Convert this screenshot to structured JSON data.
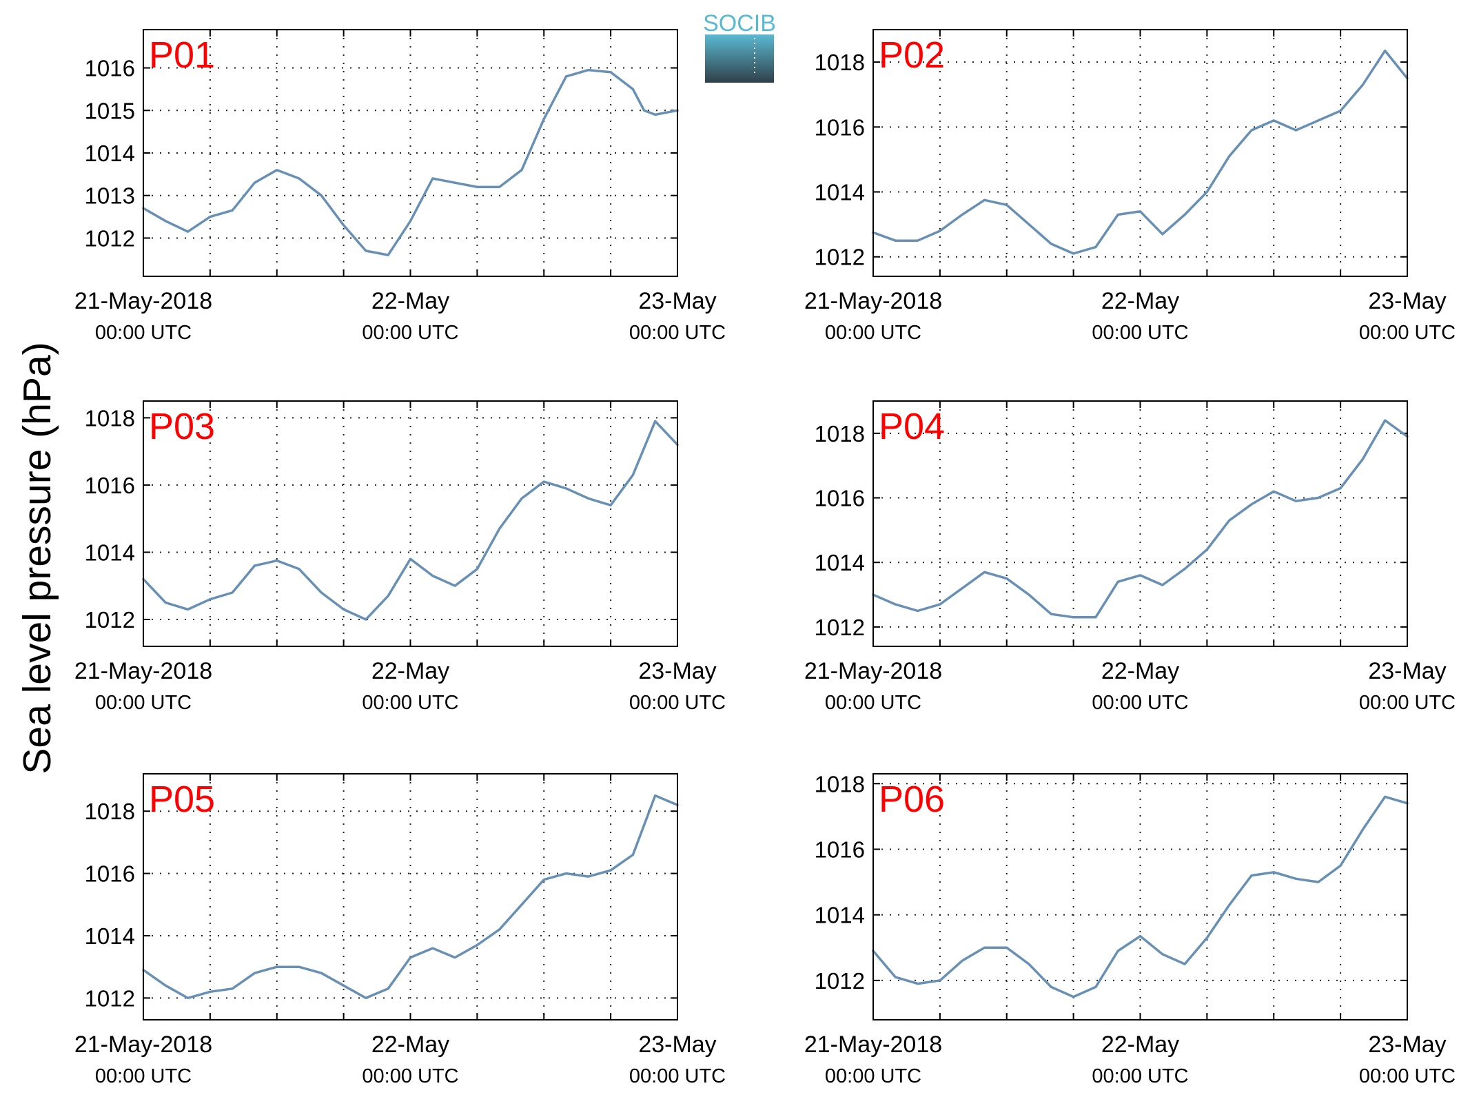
{
  "figure": {
    "ylabel": "Sea level pressure (hPa)",
    "logo_text": "SOCIB",
    "colors": {
      "line": "#6890b4",
      "panel_label": "#ff0000",
      "logo_top": "#5ab9d2",
      "logo_bottom": "#2f4049"
    }
  },
  "chart_data": [
    {
      "type": "line",
      "panel_label": "P01",
      "x_range": [
        "2018-05-21T00:00",
        "2018-05-23T00:00"
      ],
      "x_ticks": [
        {
          "label": "21-May-2018",
          "sub": "00:00 UTC"
        },
        {
          "label": "22-May",
          "sub": "00:00 UTC"
        },
        {
          "label": "23-May",
          "sub": "00:00 UTC"
        }
      ],
      "ylim": [
        1011.1,
        1016.9
      ],
      "yticks": [
        1012,
        1013,
        1014,
        1015,
        1016
      ],
      "grid": true,
      "x_hours": [
        0,
        2,
        4,
        6,
        8,
        10,
        12,
        14,
        16,
        18,
        20,
        22,
        24,
        26,
        28,
        30,
        32,
        34,
        36,
        38,
        40,
        42,
        44,
        45,
        46,
        48
      ],
      "values": [
        1012.7,
        1012.4,
        1012.15,
        1012.5,
        1012.65,
        1013.3,
        1013.6,
        1013.4,
        1013.0,
        1012.3,
        1011.7,
        1011.6,
        1012.4,
        1013.4,
        1013.3,
        1013.2,
        1013.2,
        1013.6,
        1014.8,
        1015.8,
        1015.95,
        1015.9,
        1015.5,
        1015.0,
        1014.9,
        1015.0
      ]
    },
    {
      "type": "line",
      "panel_label": "P02",
      "x_range": [
        "2018-05-21T00:00",
        "2018-05-23T00:00"
      ],
      "x_ticks": [
        {
          "label": "21-May-2018",
          "sub": "00:00 UTC"
        },
        {
          "label": "22-May",
          "sub": "00:00 UTC"
        },
        {
          "label": "23-May",
          "sub": "00:00 UTC"
        }
      ],
      "ylim": [
        1011.4,
        1019.0
      ],
      "yticks": [
        1012,
        1014,
        1016,
        1018
      ],
      "grid": true,
      "x_hours": [
        0,
        2,
        4,
        6,
        8,
        10,
        12,
        14,
        16,
        18,
        20,
        22,
        24,
        26,
        28,
        30,
        32,
        34,
        36,
        38,
        40,
        42,
        44,
        46,
        48
      ],
      "values": [
        1012.75,
        1012.5,
        1012.5,
        1012.8,
        1013.3,
        1013.75,
        1013.6,
        1013.0,
        1012.4,
        1012.1,
        1012.3,
        1013.3,
        1013.4,
        1012.7,
        1013.3,
        1014.0,
        1015.1,
        1015.9,
        1016.2,
        1015.9,
        1016.2,
        1016.5,
        1017.3,
        1018.35,
        1017.5
      ]
    },
    {
      "type": "line",
      "panel_label": "P03",
      "x_range": [
        "2018-05-21T00:00",
        "2018-05-23T00:00"
      ],
      "x_ticks": [
        {
          "label": "21-May-2018",
          "sub": "00:00 UTC"
        },
        {
          "label": "22-May",
          "sub": "00:00 UTC"
        },
        {
          "label": "23-May",
          "sub": "00:00 UTC"
        }
      ],
      "ylim": [
        1011.2,
        1018.5
      ],
      "yticks": [
        1012,
        1014,
        1016,
        1018
      ],
      "grid": true,
      "x_hours": [
        0,
        2,
        4,
        6,
        8,
        10,
        12,
        14,
        16,
        18,
        20,
        22,
        24,
        26,
        28,
        30,
        32,
        34,
        36,
        38,
        40,
        42,
        44,
        46,
        48
      ],
      "values": [
        1013.2,
        1012.5,
        1012.3,
        1012.6,
        1012.8,
        1013.6,
        1013.75,
        1013.5,
        1012.8,
        1012.3,
        1012.0,
        1012.7,
        1013.8,
        1013.3,
        1013.0,
        1013.5,
        1014.7,
        1015.6,
        1016.1,
        1015.9,
        1015.6,
        1015.4,
        1016.3,
        1017.9,
        1017.2
      ]
    },
    {
      "type": "line",
      "panel_label": "P04",
      "x_range": [
        "2018-05-21T00:00",
        "2018-05-23T00:00"
      ],
      "x_ticks": [
        {
          "label": "21-May-2018",
          "sub": "00:00 UTC"
        },
        {
          "label": "22-May",
          "sub": "00:00 UTC"
        },
        {
          "label": "23-May",
          "sub": "00:00 UTC"
        }
      ],
      "ylim": [
        1011.4,
        1019.0
      ],
      "yticks": [
        1012,
        1014,
        1016,
        1018
      ],
      "grid": true,
      "x_hours": [
        0,
        2,
        4,
        6,
        8,
        10,
        12,
        14,
        16,
        18,
        20,
        22,
        24,
        26,
        28,
        30,
        32,
        34,
        36,
        38,
        40,
        42,
        44,
        46,
        48
      ],
      "values": [
        1013.0,
        1012.7,
        1012.5,
        1012.7,
        1013.2,
        1013.7,
        1013.5,
        1013.0,
        1012.4,
        1012.3,
        1012.3,
        1013.4,
        1013.6,
        1013.3,
        1013.8,
        1014.4,
        1015.3,
        1015.8,
        1016.2,
        1015.9,
        1016.0,
        1016.3,
        1017.2,
        1018.4,
        1017.9
      ]
    },
    {
      "type": "line",
      "panel_label": "P05",
      "x_range": [
        "2018-05-21T00:00",
        "2018-05-23T00:00"
      ],
      "x_ticks": [
        {
          "label": "21-May-2018",
          "sub": "00:00 UTC"
        },
        {
          "label": "22-May",
          "sub": "00:00 UTC"
        },
        {
          "label": "23-May",
          "sub": "00:00 UTC"
        }
      ],
      "ylim": [
        1011.3,
        1019.2
      ],
      "yticks": [
        1012,
        1014,
        1016,
        1018
      ],
      "grid": true,
      "x_hours": [
        0,
        2,
        4,
        6,
        8,
        10,
        12,
        14,
        16,
        18,
        20,
        22,
        24,
        26,
        28,
        30,
        32,
        34,
        36,
        38,
        40,
        42,
        44,
        46,
        48
      ],
      "values": [
        1012.9,
        1012.4,
        1012.0,
        1012.2,
        1012.3,
        1012.8,
        1013.0,
        1013.0,
        1012.8,
        1012.4,
        1012.0,
        1012.3,
        1013.3,
        1013.6,
        1013.3,
        1013.7,
        1014.2,
        1015.0,
        1015.8,
        1016.0,
        1015.9,
        1016.1,
        1016.6,
        1018.5,
        1018.2
      ]
    },
    {
      "type": "line",
      "panel_label": "P06",
      "x_range": [
        "2018-05-21T00:00",
        "2018-05-23T00:00"
      ],
      "x_ticks": [
        {
          "label": "21-May-2018",
          "sub": "00:00 UTC"
        },
        {
          "label": "22-May",
          "sub": "00:00 UTC"
        },
        {
          "label": "23-May",
          "sub": "00:00 UTC"
        }
      ],
      "ylim": [
        1010.8,
        1018.3
      ],
      "yticks": [
        1012,
        1014,
        1016,
        1018
      ],
      "grid": true,
      "x_hours": [
        0,
        2,
        4,
        6,
        8,
        10,
        12,
        14,
        16,
        18,
        20,
        22,
        24,
        26,
        28,
        30,
        32,
        34,
        36,
        38,
        40,
        42,
        44,
        46,
        48
      ],
      "values": [
        1012.9,
        1012.1,
        1011.9,
        1012.0,
        1012.6,
        1013.0,
        1013.0,
        1012.5,
        1011.8,
        1011.5,
        1011.8,
        1012.9,
        1013.35,
        1012.8,
        1012.5,
        1013.3,
        1014.3,
        1015.2,
        1015.3,
        1015.1,
        1015.0,
        1015.5,
        1016.6,
        1017.6,
        1017.4
      ]
    }
  ]
}
